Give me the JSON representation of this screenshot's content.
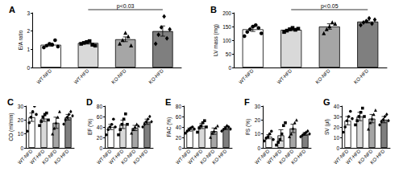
{
  "chart_data": [
    {
      "type": "bar",
      "title": "A",
      "y_label": "E/A ratio",
      "categories": [
        "WT-NFD",
        "WT-HFD",
        "KO-NFD",
        "KO-HFD"
      ],
      "values": [
        1.25,
        1.35,
        1.55,
        2.0
      ],
      "errors": [
        0.08,
        0.06,
        0.13,
        0.28
      ],
      "points": [
        [
          1.1,
          1.2,
          1.3,
          1.25,
          1.5,
          1.15
        ],
        [
          1.3,
          1.35,
          1.4,
          1.45,
          1.25,
          1.2
        ],
        [
          1.3,
          1.5,
          1.9,
          1.7,
          1.2
        ],
        [
          1.3,
          1.8,
          2.2,
          2.8,
          1.6,
          2.1
        ]
      ],
      "colors": [
        "#ffffff",
        "#d9d9d9",
        "#a6a6a6",
        "#7f7f7f"
      ],
      "ylim": [
        0,
        3
      ],
      "yticks": [
        0,
        1,
        2,
        3
      ],
      "grid": false,
      "annotation": {
        "text": "p<0.03",
        "from": "WT-HFD",
        "to": "KO-HFD"
      }
    },
    {
      "type": "bar",
      "title": "B",
      "y_label": "LV mass (mg)",
      "categories": [
        "WT-NFD",
        "WT-HFD",
        "KO-NFD",
        "KO-HFD"
      ],
      "values": [
        140,
        138,
        150,
        168
      ],
      "errors": [
        8,
        3,
        10,
        5
      ],
      "points": [
        [
          115,
          130,
          140,
          150,
          155,
          145,
          125
        ],
        [
          130,
          135,
          140,
          145,
          138,
          142
        ],
        [
          125,
          140,
          150,
          165,
          160
        ],
        [
          155,
          165,
          170,
          180,
          160,
          175
        ]
      ],
      "colors": [
        "#ffffff",
        "#d9d9d9",
        "#a6a6a6",
        "#7f7f7f"
      ],
      "ylim": [
        0,
        200
      ],
      "yticks": [
        0,
        50,
        100,
        150,
        200
      ],
      "grid": false,
      "annotation": {
        "text": "p<0.05",
        "from": "WT-HFD",
        "to": "KO-HFD"
      }
    },
    {
      "type": "bar",
      "title": "C",
      "y_label": "CO (ml/min)",
      "categories": [
        "WT-NFD",
        "WT-HFD",
        "KO-NFD",
        "KO-HFD"
      ],
      "values": [
        22,
        21,
        18,
        22
      ],
      "errors": [
        3,
        2,
        4,
        2
      ],
      "points": [
        [
          12,
          18,
          22,
          26,
          30,
          24
        ],
        [
          16,
          19,
          22,
          24,
          25,
          20
        ],
        [
          10,
          14,
          18,
          22,
          26
        ],
        [
          17,
          20,
          22,
          24,
          26,
          23
        ]
      ],
      "colors": [
        "#ffffff",
        "#d9d9d9",
        "#a6a6a6",
        "#7f7f7f"
      ],
      "ylim": [
        0,
        30
      ],
      "yticks": [
        0,
        10,
        20,
        30
      ],
      "grid": false
    },
    {
      "type": "bar",
      "title": "D",
      "y_label": "EF (%)",
      "categories": [
        "WT-NFD",
        "WT-HFD",
        "KO-NFD",
        "KO-HFD"
      ],
      "values": [
        40,
        45,
        38,
        50
      ],
      "errors": [
        5,
        8,
        5,
        5
      ],
      "points": [
        [
          25,
          35,
          40,
          45,
          55,
          40
        ],
        [
          25,
          35,
          45,
          55,
          65,
          45
        ],
        [
          28,
          35,
          40,
          45,
          42
        ],
        [
          40,
          45,
          50,
          55,
          60,
          50
        ]
      ],
      "colors": [
        "#ffffff",
        "#d9d9d9",
        "#a6a6a6",
        "#7f7f7f"
      ],
      "ylim": [
        0,
        80
      ],
      "yticks": [
        0,
        20,
        40,
        60,
        80
      ],
      "grid": false
    },
    {
      "type": "bar",
      "title": "E",
      "y_label": "FAC (%)",
      "categories": [
        "WT-NFD",
        "WT-HFD",
        "KO-NFD",
        "KO-HFD"
      ],
      "values": [
        35,
        42,
        32,
        38
      ],
      "errors": [
        3,
        5,
        6,
        3
      ],
      "points": [
        [
          28,
          32,
          35,
          38,
          40,
          36
        ],
        [
          30,
          38,
          42,
          48,
          52,
          40
        ],
        [
          20,
          28,
          32,
          38,
          42
        ],
        [
          32,
          35,
          38,
          42,
          40,
          36
        ]
      ],
      "colors": [
        "#ffffff",
        "#d9d9d9",
        "#a6a6a6",
        "#7f7f7f"
      ],
      "ylim": [
        0,
        80
      ],
      "yticks": [
        0,
        20,
        40,
        60,
        80
      ],
      "grid": false
    },
    {
      "type": "bar",
      "title": "F",
      "y_label": "FS (%)",
      "categories": [
        "WT-NFD",
        "WT-HFD",
        "KO-NFD",
        "KO-HFD"
      ],
      "values": [
        8,
        9,
        14,
        10
      ],
      "errors": [
        1.5,
        4,
        3,
        1
      ],
      "points": [
        [
          5,
          7,
          8,
          10,
          12,
          6
        ],
        [
          2,
          4,
          6,
          10,
          16,
          18
        ],
        [
          8,
          10,
          14,
          18,
          20
        ],
        [
          8,
          9,
          10,
          11,
          12,
          10
        ]
      ],
      "colors": [
        "#ffffff",
        "#d9d9d9",
        "#a6a6a6",
        "#7f7f7f"
      ],
      "ylim": [
        0,
        30
      ],
      "yticks": [
        0,
        10,
        20,
        30
      ],
      "grid": false
    },
    {
      "type": "bar",
      "title": "G",
      "y_label": "SV (µl)",
      "categories": [
        "WT-NFD",
        "WT-HFD",
        "KO-NFD",
        "KO-HFD"
      ],
      "values": [
        26,
        30,
        28,
        27
      ],
      "errors": [
        4,
        4,
        4,
        3
      ],
      "points": [
        [
          15,
          20,
          26,
          30,
          35,
          28
        ],
        [
          22,
          26,
          30,
          34,
          38,
          30
        ],
        [
          18,
          24,
          28,
          32,
          36
        ],
        [
          22,
          25,
          27,
          30,
          32,
          26
        ]
      ],
      "colors": [
        "#ffffff",
        "#d9d9d9",
        "#a6a6a6",
        "#7f7f7f"
      ],
      "ylim": [
        0,
        40
      ],
      "yticks": [
        0,
        10,
        20,
        30,
        40
      ],
      "grid": false
    }
  ]
}
